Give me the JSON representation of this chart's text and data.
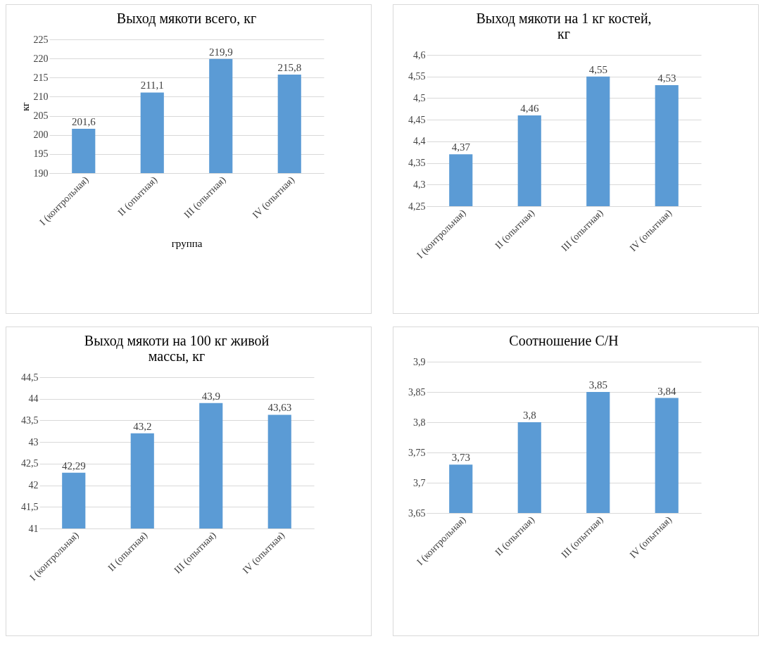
{
  "chart_data": [
    {
      "type": "bar",
      "title": "Выход мякоти всего, кг",
      "xlabel": "группа",
      "ylabel": "кг",
      "categories": [
        "I (контрольная)",
        "II (опытная)",
        "III (опытная)",
        "IV (опытная)"
      ],
      "series": [
        {
          "color": "#5b9bd5",
          "values": [
            201.6,
            211.1,
            219.9,
            215.8
          ],
          "value_labels": [
            "201,6",
            "211,1",
            "219,9",
            "215,8"
          ]
        }
      ],
      "ylim": [
        190,
        225
      ],
      "yticks": [
        190,
        195,
        200,
        205,
        210,
        215,
        220,
        225
      ],
      "grid": "y"
    },
    {
      "type": "bar",
      "title": "Выход мякоти на 1 кг костей, кг",
      "categories": [
        "I (контрольная)",
        "II (опытная)",
        "III (опытная)",
        "IV (опытная)"
      ],
      "series": [
        {
          "color": "#5b9bd5",
          "values": [
            4.37,
            4.46,
            4.55,
            4.53
          ],
          "value_labels": [
            "4,37",
            "4,46",
            "4,55",
            "4,53"
          ]
        }
      ],
      "ylim": [
        4.25,
        4.6
      ],
      "yticks": [
        {
          "value": 4.25,
          "label": "4,25"
        },
        {
          "value": 4.3,
          "label": "4,3"
        },
        {
          "value": 4.35,
          "label": "4,35"
        },
        {
          "value": 4.4,
          "label": "4,4"
        },
        {
          "value": 4.45,
          "label": "4,45"
        },
        {
          "value": 4.5,
          "label": "4,5"
        },
        {
          "value": 4.55,
          "label": "4,55"
        },
        {
          "value": 4.6,
          "label": "4,6"
        }
      ],
      "grid": "y"
    },
    {
      "type": "bar",
      "title": "Выход мякоти на 100 кг живой массы, кг",
      "categories": [
        "I (контрольная)",
        "II (опытная)",
        "III (опытная)",
        "IV (опытная)"
      ],
      "series": [
        {
          "color": "#5b9bd5",
          "values": [
            42.29,
            43.2,
            43.9,
            43.63
          ],
          "value_labels": [
            "42,29",
            "43,2",
            "43,9",
            "43,63"
          ]
        }
      ],
      "ylim": [
        41,
        44.5
      ],
      "yticks": [
        41,
        {
          "value": 41.5,
          "label": "41,5"
        },
        42,
        {
          "value": 42.5,
          "label": "42,5"
        },
        43,
        {
          "value": 43.5,
          "label": "43,5"
        },
        44,
        {
          "value": 44.5,
          "label": "44,5"
        }
      ],
      "grid": "y"
    },
    {
      "type": "bar",
      "title": "Соотношение С/Н",
      "categories": [
        "I (контрольная)",
        "II (опытная)",
        "III (опытная)",
        "IV (опытная)"
      ],
      "series": [
        {
          "color": "#5b9bd5",
          "values": [
            3.73,
            3.8,
            3.85,
            3.84
          ],
          "value_labels": [
            "3,73",
            "3,8",
            "3,85",
            "3,84"
          ]
        }
      ],
      "ylim": [
        3.65,
        3.9
      ],
      "yticks": [
        {
          "value": 3.65,
          "label": "3,65"
        },
        {
          "value": 3.7,
          "label": "3,7"
        },
        {
          "value": 3.75,
          "label": "3,75"
        },
        {
          "value": 3.8,
          "label": "3,8"
        },
        {
          "value": 3.85,
          "label": "3,85"
        },
        {
          "value": 3.9,
          "label": "3,9"
        }
      ],
      "grid": "y"
    }
  ]
}
